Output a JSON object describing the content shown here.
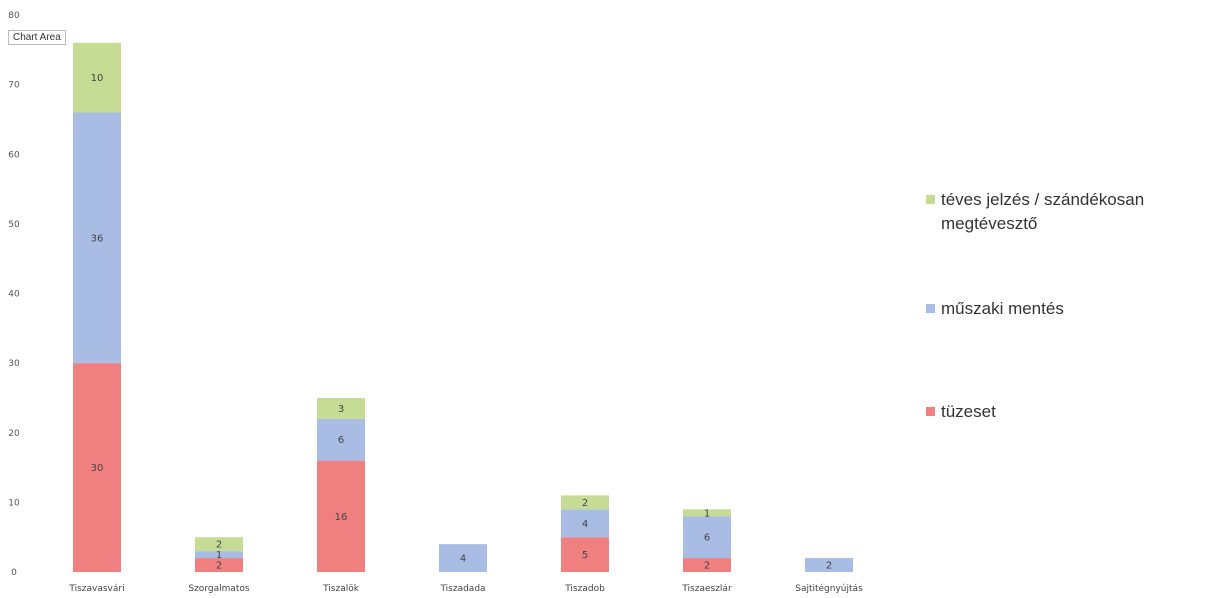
{
  "chart_area_label": "Chart Area",
  "chart_data": {
    "type": "bar",
    "stacked": true,
    "categories": [
      "Tiszavasvári",
      "Szorgalmatos",
      "Tiszalök",
      "Tiszadada",
      "Tiszadob",
      "Tiszaeszlár",
      "Sajtitégnyújtás"
    ],
    "series": [
      {
        "name": "tüzeset",
        "color": "#f08080",
        "values": [
          30,
          2,
          16,
          0,
          5,
          2,
          0
        ]
      },
      {
        "name": "műszaki mentés",
        "color": "#a8bce4",
        "values": [
          36,
          1,
          6,
          4,
          4,
          6,
          2
        ]
      },
      {
        "name": "téves jelzés / szándékosan megtévesztő",
        "color": "#c6dc94",
        "values": [
          10,
          2,
          3,
          0,
          2,
          1,
          0
        ]
      }
    ],
    "ylim": [
      0,
      80
    ],
    "yticks": [
      0,
      10,
      20,
      30,
      40,
      50,
      60,
      70,
      80
    ],
    "grid": false,
    "legend_position": "right",
    "title": "",
    "xlabel": "",
    "ylabel": ""
  }
}
